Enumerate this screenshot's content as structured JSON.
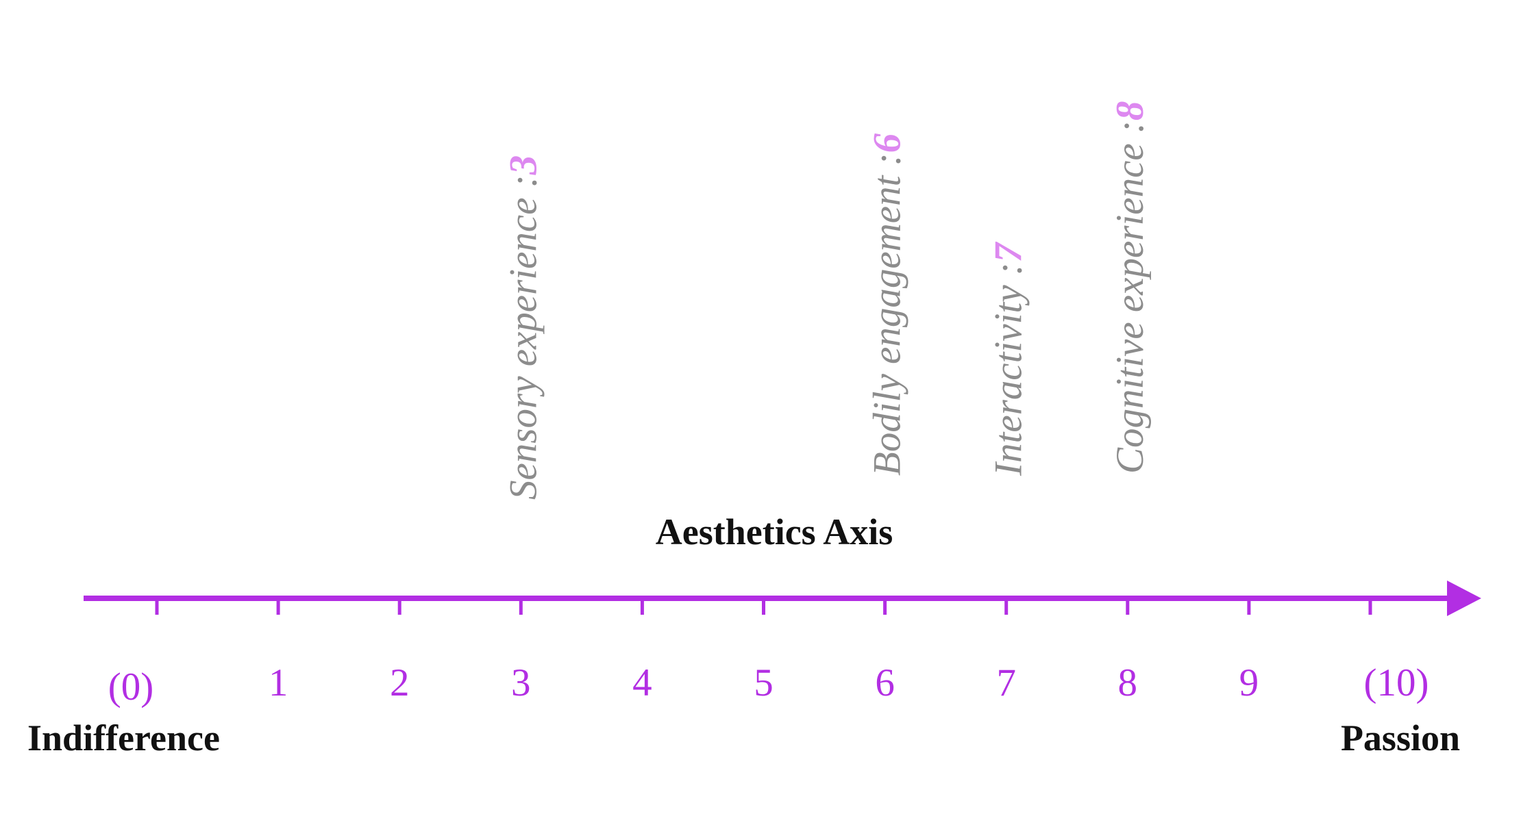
{
  "title": "Aesthetics Axis",
  "axis": {
    "min": 0,
    "max": 10,
    "tick_labels": [
      "(0)",
      "1",
      "2",
      "3",
      "4",
      "5",
      "6",
      "7",
      "8",
      "9",
      "(10)"
    ],
    "left_label": "Indifference",
    "right_label": "Passion",
    "color": "#b22ee3"
  },
  "items": [
    {
      "label": "Sensory experience :",
      "value": 3,
      "value_text": "3"
    },
    {
      "label": "Bodily engagement :",
      "value": 6,
      "value_text": "6"
    },
    {
      "label": "Interactivity :",
      "value": 7,
      "value_text": "7"
    },
    {
      "label": "Cognitive experience :",
      "value": 8,
      "value_text": "8"
    }
  ],
  "colors": {
    "label": "#8c8c8c",
    "value": "#dd88f0",
    "text": "#111111"
  }
}
